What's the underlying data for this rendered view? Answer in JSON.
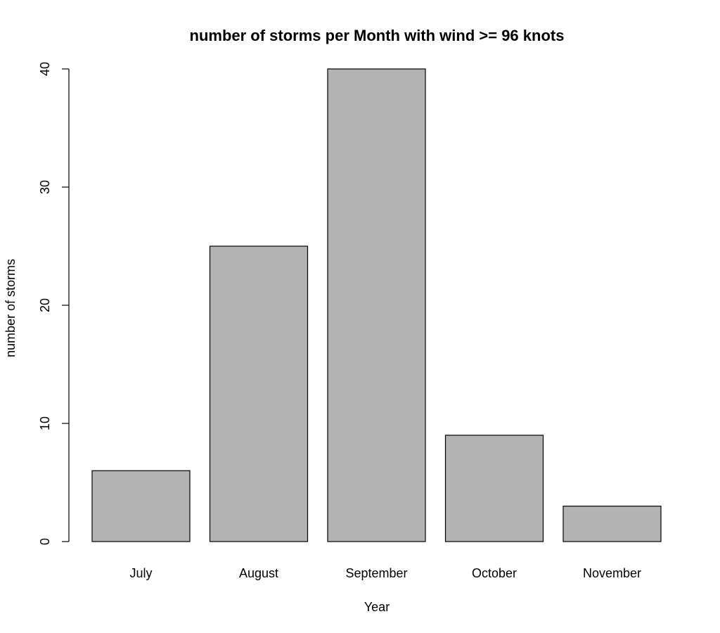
{
  "chart_data": {
    "type": "bar",
    "title": "number of storms per Month with wind >= 96 knots",
    "xlabel": "Year",
    "ylabel": "number of storms",
    "categories": [
      "July",
      "August",
      "September",
      "October",
      "November"
    ],
    "values": [
      6,
      25,
      40,
      9,
      3
    ],
    "ylim": [
      0,
      40
    ],
    "yticks": [
      0,
      10,
      20,
      30,
      40
    ],
    "bar_color": "#b3b3b3",
    "grid": false,
    "legend": "none"
  }
}
